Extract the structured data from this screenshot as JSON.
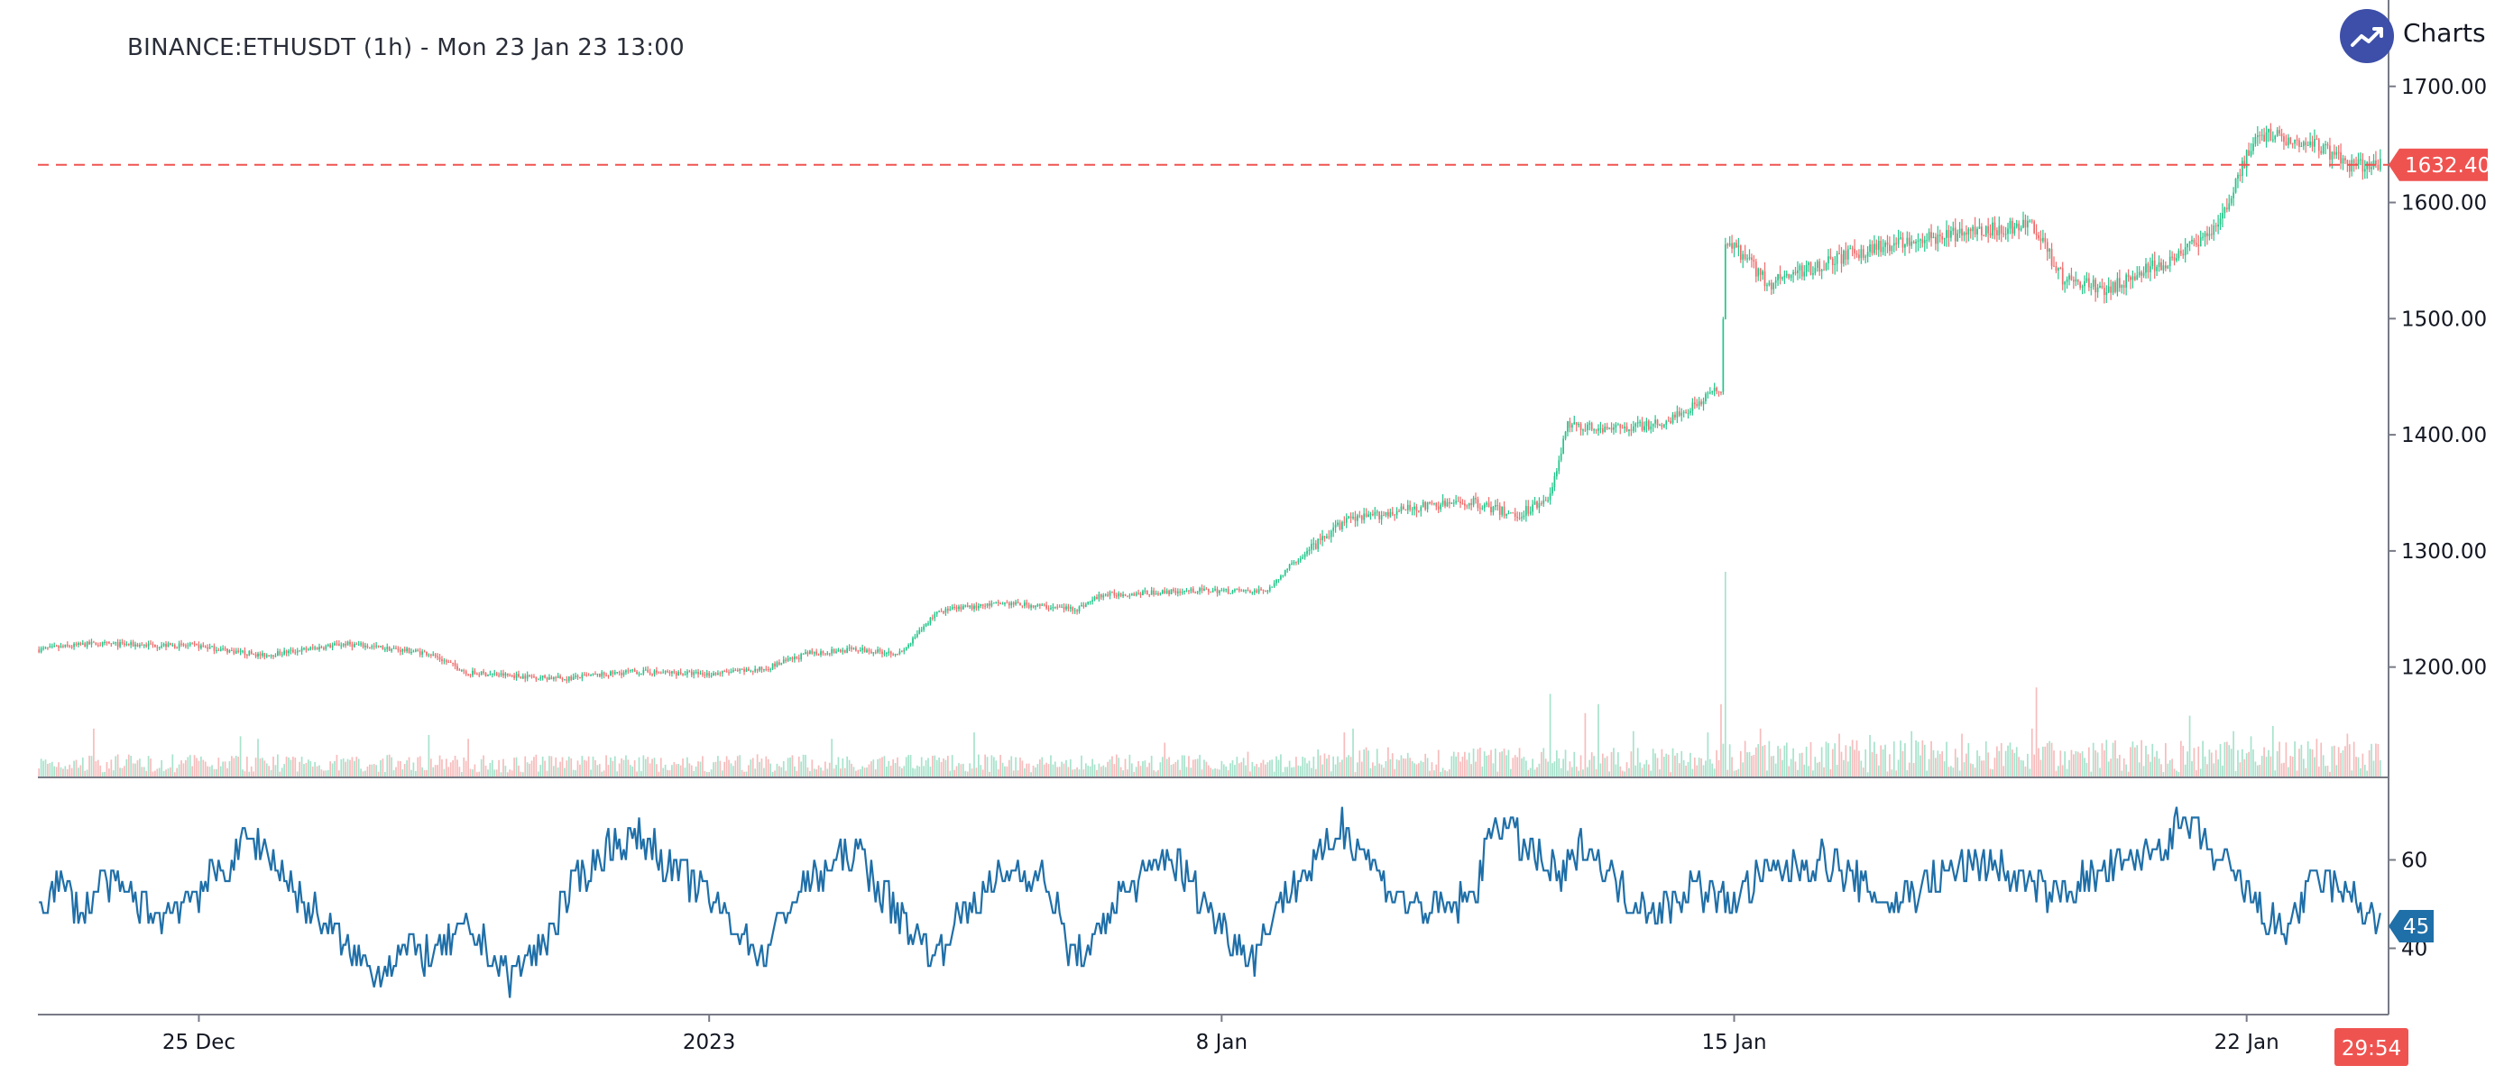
{
  "header": {
    "title": "BINANCE:ETHUSDT (1h) - Mon 23 Jan 23 13:00",
    "brand": "Charts p",
    "brand_icon": "trend-up-icon"
  },
  "colors": {
    "up": "#26a69a",
    "up_body": "#22c58a",
    "down": "#ef5350",
    "down_body": "#ef6b6b",
    "volume_up": "#a7e3cc",
    "volume_down": "#f7bcbc",
    "rsi_line": "#2962ff",
    "rsi_line_actual": "#1f6fa8",
    "price_line": "#ef5350",
    "axis": "#787b86",
    "logo": "#3d4fa8"
  },
  "chart_data": [
    {
      "type": "candlestick",
      "title": "BINANCE:ETHUSDT (1h) - Mon 23 Jan 23 13:00",
      "xlabel": "",
      "ylabel": "",
      "ylim": [
        1105,
        1720
      ],
      "y_ticks": [
        "1200.00",
        "1300.00",
        "1400.00",
        "1500.00",
        "1600.00",
        "1700.00"
      ],
      "x_tick_labels": [
        "25 Dec",
        "2023",
        "8 Jan",
        "15 Jan",
        "22 Jan"
      ],
      "x_tick_indices": [
        73,
        306,
        540,
        774,
        1008
      ],
      "candle_count": 1070,
      "last_price": "1632.40",
      "price_line": 1632.4,
      "countdown": "29:54",
      "price_anchors": [
        [
          0,
          1215
        ],
        [
          24,
          1220
        ],
        [
          73,
          1218
        ],
        [
          102,
          1210
        ],
        [
          140,
          1220
        ],
        [
          178,
          1212
        ],
        [
          196,
          1195
        ],
        [
          240,
          1190
        ],
        [
          270,
          1196
        ],
        [
          306,
          1194
        ],
        [
          330,
          1198
        ],
        [
          352,
          1212
        ],
        [
          372,
          1215
        ],
        [
          394,
          1212
        ],
        [
          410,
          1248
        ],
        [
          440,
          1255
        ],
        [
          474,
          1250
        ],
        [
          485,
          1262
        ],
        [
          530,
          1266
        ],
        [
          560,
          1265
        ],
        [
          573,
          1290
        ],
        [
          596,
          1325
        ],
        [
          630,
          1338
        ],
        [
          655,
          1342
        ],
        [
          675,
          1330
        ],
        [
          690,
          1348
        ],
        [
          698,
          1408
        ],
        [
          720,
          1405
        ],
        [
          742,
          1410
        ],
        [
          768,
          1440
        ],
        [
          770,
          1570
        ],
        [
          790,
          1530
        ],
        [
          815,
          1548
        ],
        [
          840,
          1562
        ],
        [
          865,
          1570
        ],
        [
          896,
          1578
        ],
        [
          910,
          1580
        ],
        [
          924,
          1535
        ],
        [
          944,
          1525
        ],
        [
          960,
          1540
        ],
        [
          978,
          1555
        ],
        [
          996,
          1582
        ],
        [
          1012,
          1660
        ],
        [
          1040,
          1650
        ],
        [
          1055,
          1632
        ],
        [
          1070,
          1632
        ]
      ],
      "volume_spikes": [
        [
          25,
          38
        ],
        [
          92,
          32
        ],
        [
          100,
          30
        ],
        [
          178,
          33
        ],
        [
          196,
          30
        ],
        [
          362,
          30
        ],
        [
          427,
          35
        ],
        [
          514,
          27
        ],
        [
          552,
          20
        ],
        [
          596,
          35
        ],
        [
          600,
          38
        ],
        [
          690,
          65
        ],
        [
          706,
          50
        ],
        [
          712,
          57
        ],
        [
          728,
          36
        ],
        [
          762,
          35
        ],
        [
          768,
          57
        ],
        [
          770,
          160
        ],
        [
          786,
          38
        ],
        [
          822,
          34
        ],
        [
          836,
          33
        ],
        [
          855,
          36
        ],
        [
          878,
          34
        ],
        [
          910,
          38
        ],
        [
          912,
          70
        ],
        [
          982,
          48
        ],
        [
          1002,
          36
        ],
        [
          1010,
          32
        ],
        [
          1020,
          40
        ],
        [
          1030,
          28
        ],
        [
          1040,
          30
        ],
        [
          1054,
          34
        ]
      ]
    },
    {
      "type": "line",
      "title": "",
      "series_name": "",
      "ylim": [
        25,
        75
      ],
      "y_ticks": [
        "40",
        "60"
      ],
      "last_value": "45",
      "x_tick_indices": [
        73,
        306,
        540,
        774,
        1008
      ],
      "rsi_anchors": [
        [
          0,
          50
        ],
        [
          10,
          55
        ],
        [
          20,
          48
        ],
        [
          30,
          55
        ],
        [
          40,
          52
        ],
        [
          55,
          47
        ],
        [
          70,
          52
        ],
        [
          85,
          58
        ],
        [
          95,
          65
        ],
        [
          105,
          62
        ],
        [
          120,
          50
        ],
        [
          130,
          46
        ],
        [
          140,
          40
        ],
        [
          155,
          35
        ],
        [
          170,
          40
        ],
        [
          180,
          38
        ],
        [
          195,
          44
        ],
        [
          205,
          40
        ],
        [
          215,
          33
        ],
        [
          230,
          41
        ],
        [
          245,
          55
        ],
        [
          260,
          63
        ],
        [
          275,
          65
        ],
        [
          290,
          58
        ],
        [
          305,
          52
        ],
        [
          320,
          44
        ],
        [
          330,
          38
        ],
        [
          345,
          52
        ],
        [
          360,
          58
        ],
        [
          375,
          62
        ],
        [
          385,
          52
        ],
        [
          398,
          45
        ],
        [
          410,
          38
        ],
        [
          418,
          46
        ],
        [
          430,
          52
        ],
        [
          445,
          58
        ],
        [
          460,
          55
        ],
        [
          470,
          40
        ],
        [
          480,
          38
        ],
        [
          490,
          50
        ],
        [
          505,
          56
        ],
        [
          515,
          62
        ],
        [
          525,
          55
        ],
        [
          540,
          45
        ],
        [
          555,
          38
        ],
        [
          565,
          50
        ],
        [
          575,
          56
        ],
        [
          585,
          60
        ],
        [
          595,
          68
        ],
        [
          605,
          62
        ],
        [
          615,
          55
        ],
        [
          625,
          50
        ],
        [
          640,
          48
        ],
        [
          655,
          52
        ],
        [
          665,
          70
        ],
        [
          680,
          62
        ],
        [
          695,
          55
        ],
        [
          705,
          65
        ],
        [
          715,
          58
        ],
        [
          725,
          52
        ],
        [
          740,
          48
        ],
        [
          755,
          55
        ],
        [
          770,
          50
        ],
        [
          785,
          56
        ],
        [
          800,
          58
        ],
        [
          815,
          60
        ],
        [
          830,
          55
        ],
        [
          845,
          50
        ],
        [
          860,
          54
        ],
        [
          875,
          58
        ],
        [
          890,
          60
        ],
        [
          905,
          55
        ],
        [
          920,
          52
        ],
        [
          935,
          56
        ],
        [
          950,
          58
        ],
        [
          965,
          62
        ],
        [
          980,
          68
        ],
        [
          995,
          60
        ],
        [
          1005,
          55
        ],
        [
          1015,
          48
        ],
        [
          1025,
          44
        ],
        [
          1040,
          56
        ],
        [
          1055,
          52
        ],
        [
          1065,
          48
        ],
        [
          1070,
          45
        ]
      ]
    }
  ]
}
